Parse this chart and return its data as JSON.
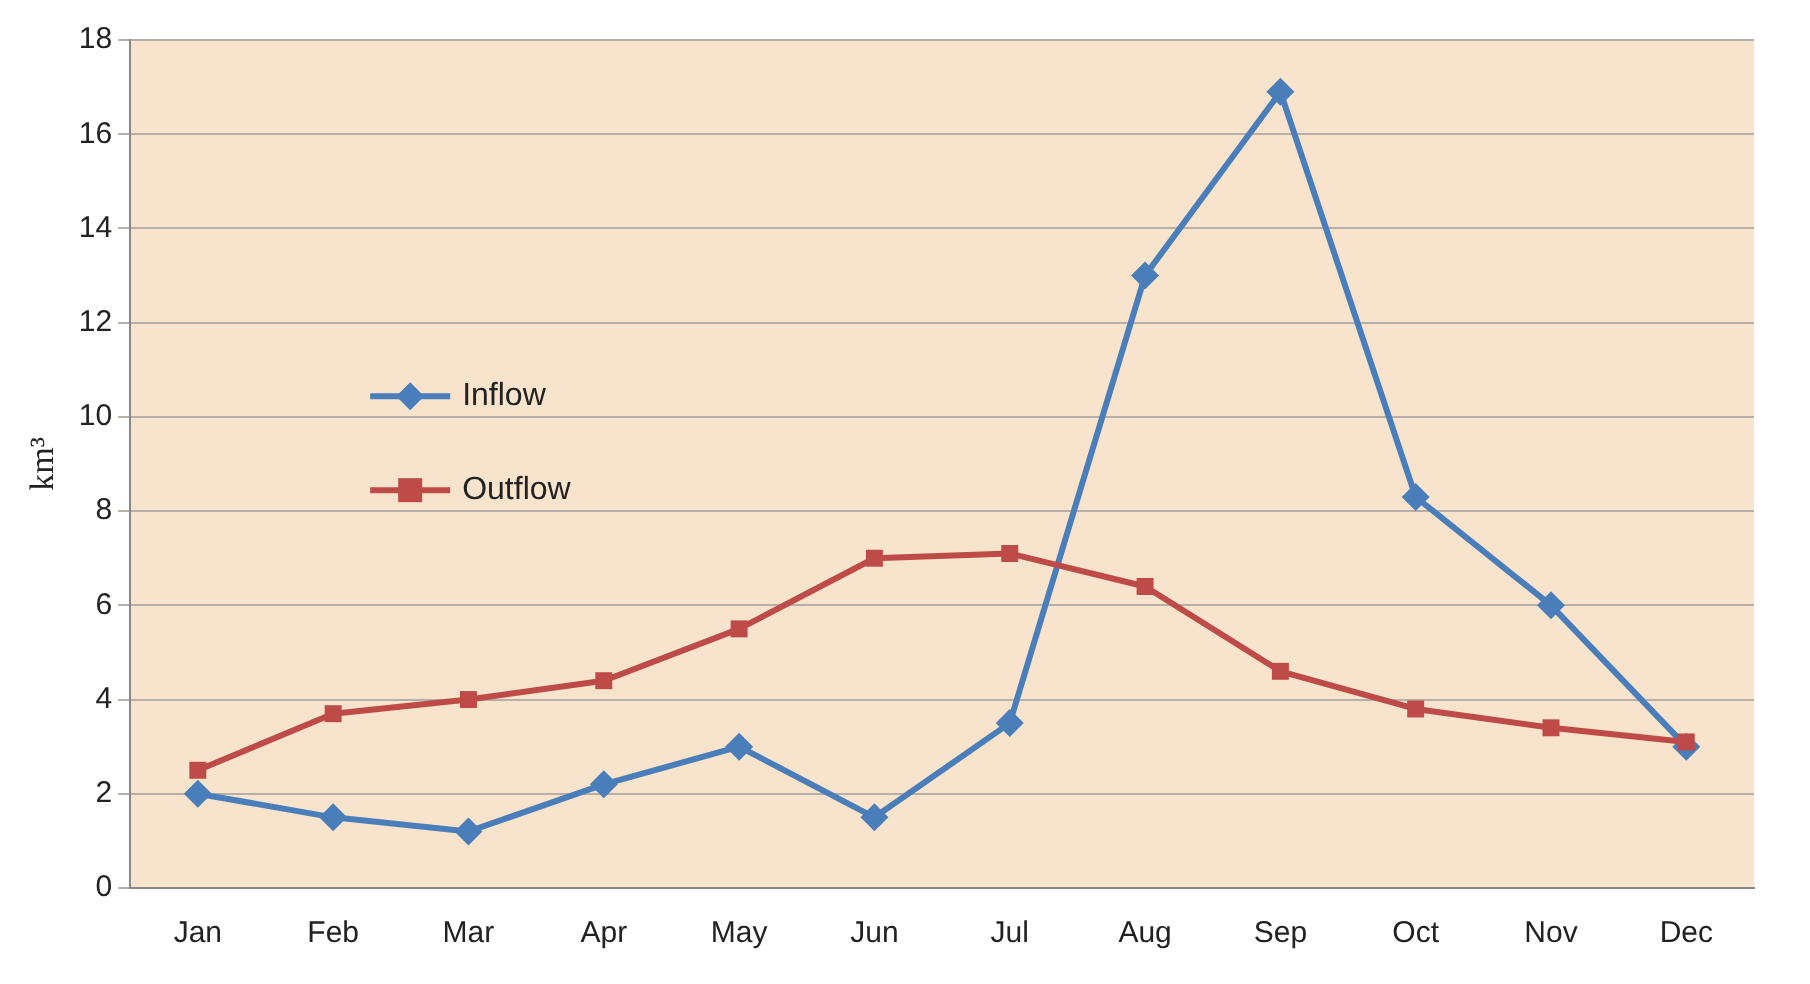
{
  "chart_data": {
    "type": "line",
    "ylabel": "km³",
    "categories": [
      "Jan",
      "Feb",
      "Mar",
      "Apr",
      "May",
      "Jun",
      "Jul",
      "Aug",
      "Sep",
      "Oct",
      "Nov",
      "Dec"
    ],
    "series": [
      {
        "name": "Inflow",
        "color": "#4a7ebb",
        "marker": "diamond",
        "values": [
          2,
          1.5,
          1.2,
          2.2,
          3,
          1.5,
          3.5,
          13,
          16.9,
          8.3,
          6,
          3
        ]
      },
      {
        "name": "Outflow",
        "color": "#be4b48",
        "marker": "square",
        "values": [
          2.5,
          3.7,
          4,
          4.4,
          5.5,
          7,
          7.1,
          6.4,
          4.6,
          3.8,
          3.4,
          3.1
        ]
      }
    ],
    "ylim": [
      0,
      18
    ],
    "yticks": [
      0,
      2,
      4,
      6,
      8,
      10,
      12,
      14,
      16,
      18
    ],
    "grid": "y",
    "legend": "left"
  }
}
